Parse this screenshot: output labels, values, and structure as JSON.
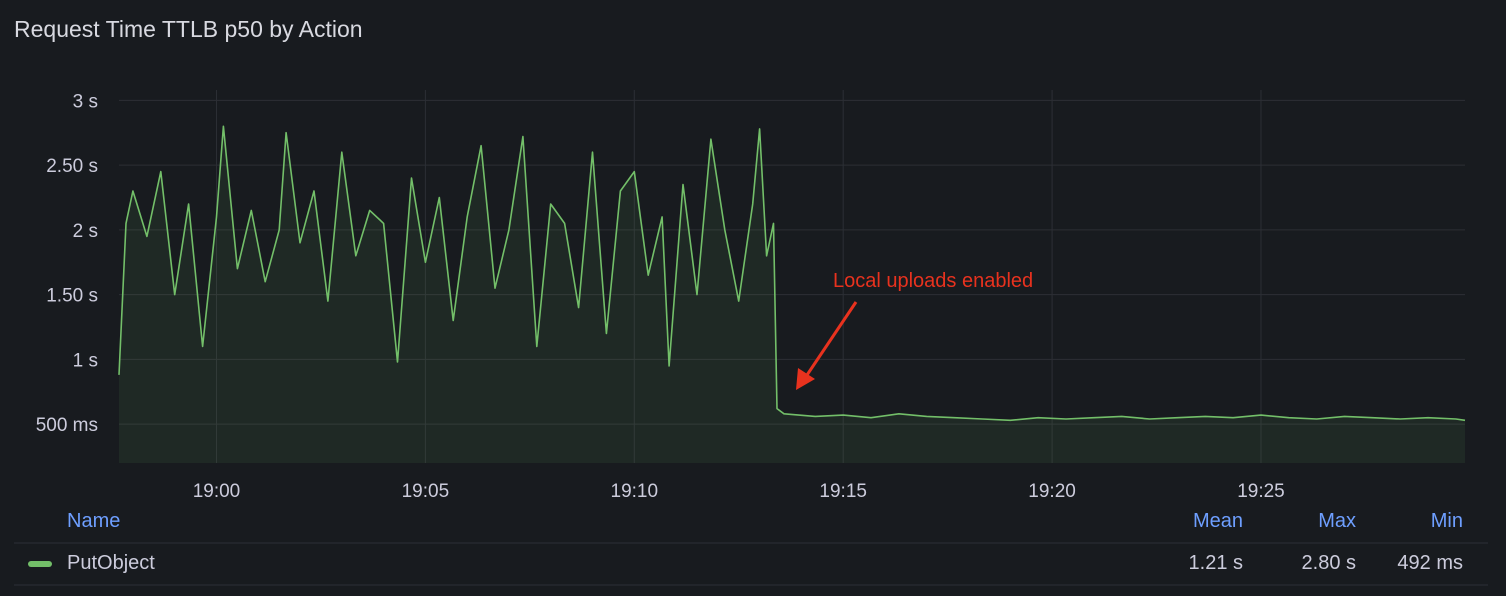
{
  "panel": {
    "title": "Request Time TTLB p50 by Action"
  },
  "colors": {
    "series": "#73bf69",
    "annotation": "#e8321e",
    "legend_header": "#6e9fff",
    "background": "#181b1f"
  },
  "chart_data": {
    "type": "area",
    "title": "Request Time TTLB p50 by Action",
    "xlabel": "",
    "ylabel": "",
    "xlim": [
      "18:57:40",
      "19:29:53"
    ],
    "ylim": [
      0.2,
      3.08
    ],
    "y_unit": "s",
    "grid": true,
    "legend_placement": "bottom",
    "x_ticks": [
      "19:00",
      "19:05",
      "19:10",
      "19:15",
      "19:20",
      "19:25"
    ],
    "y_ticks": [
      {
        "value": 0.5,
        "label": "500 ms"
      },
      {
        "value": 1,
        "label": "1 s"
      },
      {
        "value": 1.5,
        "label": "1.50 s"
      },
      {
        "value": 2,
        "label": "2 s"
      },
      {
        "value": 2.5,
        "label": "2.50 s"
      },
      {
        "value": 3,
        "label": "3 s"
      }
    ],
    "annotation": {
      "text": "Local uploads enabled",
      "time": "19:13:25"
    },
    "series": [
      {
        "name": "PutObject",
        "points": [
          [
            "18:57:40",
            0.88
          ],
          [
            "18:57:50",
            2.05
          ],
          [
            "18:58:00",
            2.3
          ],
          [
            "18:58:20",
            1.95
          ],
          [
            "18:58:40",
            2.45
          ],
          [
            "18:59:00",
            1.5
          ],
          [
            "18:59:20",
            2.2
          ],
          [
            "18:59:40",
            1.1
          ],
          [
            "19:00:00",
            2.1
          ],
          [
            "19:00:10",
            2.8
          ],
          [
            "19:00:30",
            1.7
          ],
          [
            "19:00:50",
            2.15
          ],
          [
            "19:01:10",
            1.6
          ],
          [
            "19:01:30",
            2.0
          ],
          [
            "19:01:40",
            2.75
          ],
          [
            "19:02:00",
            1.9
          ],
          [
            "19:02:20",
            2.3
          ],
          [
            "19:02:40",
            1.45
          ],
          [
            "19:03:00",
            2.6
          ],
          [
            "19:03:20",
            1.8
          ],
          [
            "19:03:40",
            2.15
          ],
          [
            "19:04:00",
            2.05
          ],
          [
            "19:04:20",
            0.98
          ],
          [
            "19:04:40",
            2.4
          ],
          [
            "19:05:00",
            1.75
          ],
          [
            "19:05:20",
            2.25
          ],
          [
            "19:05:40",
            1.3
          ],
          [
            "19:06:00",
            2.1
          ],
          [
            "19:06:20",
            2.65
          ],
          [
            "19:06:40",
            1.55
          ],
          [
            "19:07:00",
            2.0
          ],
          [
            "19:07:20",
            2.72
          ],
          [
            "19:07:40",
            1.1
          ],
          [
            "19:08:00",
            2.2
          ],
          [
            "19:08:20",
            2.05
          ],
          [
            "19:08:40",
            1.4
          ],
          [
            "19:09:00",
            2.6
          ],
          [
            "19:09:20",
            1.2
          ],
          [
            "19:09:40",
            2.3
          ],
          [
            "19:10:00",
            2.45
          ],
          [
            "19:10:20",
            1.65
          ],
          [
            "19:10:40",
            2.1
          ],
          [
            "19:10:50",
            0.95
          ],
          [
            "19:11:10",
            2.35
          ],
          [
            "19:11:30",
            1.5
          ],
          [
            "19:11:50",
            2.7
          ],
          [
            "19:12:10",
            2.0
          ],
          [
            "19:12:30",
            1.45
          ],
          [
            "19:12:50",
            2.2
          ],
          [
            "19:13:00",
            2.78
          ],
          [
            "19:13:10",
            1.8
          ],
          [
            "19:13:20",
            2.05
          ],
          [
            "19:13:25",
            0.62
          ],
          [
            "19:13:35",
            0.58
          ],
          [
            "19:14:20",
            0.56
          ],
          [
            "19:15:00",
            0.57
          ],
          [
            "19:15:40",
            0.55
          ],
          [
            "19:16:20",
            0.58
          ],
          [
            "19:17:00",
            0.56
          ],
          [
            "19:17:40",
            0.55
          ],
          [
            "19:18:20",
            0.54
          ],
          [
            "19:19:00",
            0.53
          ],
          [
            "19:19:40",
            0.55
          ],
          [
            "19:20:20",
            0.54
          ],
          [
            "19:21:00",
            0.55
          ],
          [
            "19:21:40",
            0.56
          ],
          [
            "19:22:20",
            0.54
          ],
          [
            "19:23:00",
            0.55
          ],
          [
            "19:23:40",
            0.56
          ],
          [
            "19:24:20",
            0.55
          ],
          [
            "19:25:00",
            0.57
          ],
          [
            "19:25:40",
            0.55
          ],
          [
            "19:26:20",
            0.54
          ],
          [
            "19:27:00",
            0.56
          ],
          [
            "19:27:40",
            0.55
          ],
          [
            "19:28:20",
            0.54
          ],
          [
            "19:29:00",
            0.55
          ],
          [
            "19:29:40",
            0.54
          ],
          [
            "19:29:53",
            0.53
          ]
        ]
      }
    ]
  },
  "legend": {
    "headers": {
      "name": "Name",
      "mean": "Mean",
      "max": "Max",
      "min": "Min"
    },
    "rows": [
      {
        "name": "PutObject",
        "mean": "1.21 s",
        "max": "2.80 s",
        "min": "492 ms"
      }
    ]
  }
}
